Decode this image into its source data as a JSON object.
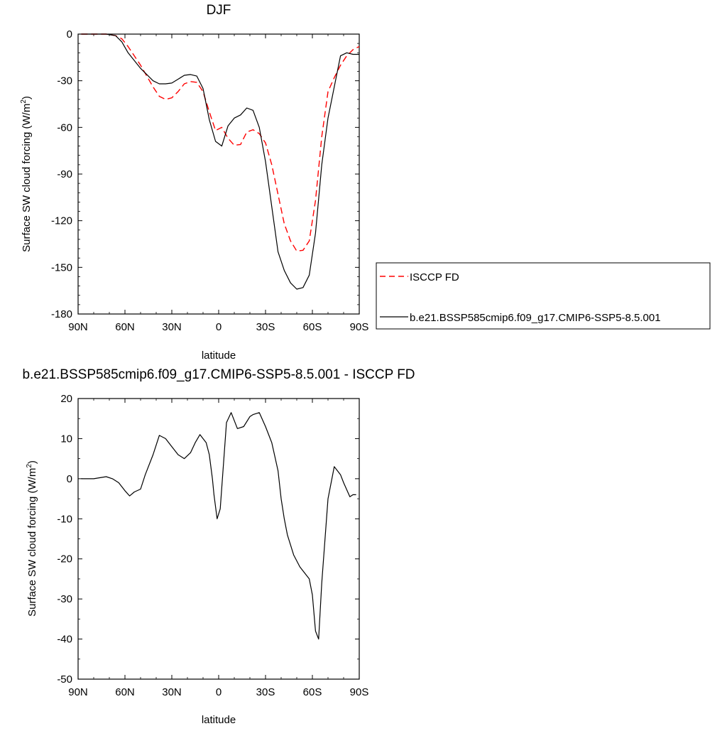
{
  "chart_data": [
    {
      "type": "line",
      "title": "DJF",
      "xlabel": "latitude",
      "ylabel": "Surface SW cloud forcing (W/m²)",
      "ylabel_main": "Surface SW cloud forcing (W/m",
      "ylabel_sup": "2",
      "ylabel_tail": ")",
      "xlim": [
        90,
        -90
      ],
      "ylim": [
        -180,
        0
      ],
      "xticks": [
        {
          "v": 90,
          "label": "90N"
        },
        {
          "v": 60,
          "label": "60N"
        },
        {
          "v": 30,
          "label": "30N"
        },
        {
          "v": 0,
          "label": "0"
        },
        {
          "v": -30,
          "label": "30S"
        },
        {
          "v": -60,
          "label": "60S"
        },
        {
          "v": -90,
          "label": "90S"
        }
      ],
      "yticks": [
        {
          "v": 0,
          "label": "0"
        },
        {
          "v": -30,
          "label": "-30"
        },
        {
          "v": -60,
          "label": "-60"
        },
        {
          "v": -90,
          "label": "-90"
        },
        {
          "v": -120,
          "label": "-120"
        },
        {
          "v": -150,
          "label": "-150"
        },
        {
          "v": -180,
          "label": "-180"
        }
      ],
      "legend": {
        "placement": "right"
      },
      "series": [
        {
          "name": "ISCCP FD",
          "color": "#ff0000",
          "dash": "dashed",
          "x": [
            88,
            80,
            72,
            66,
            62,
            58,
            54,
            50,
            46,
            42,
            38,
            34,
            30,
            26,
            22,
            18,
            14,
            10,
            6,
            2,
            -2,
            -6,
            -10,
            -14,
            -18,
            -22,
            -26,
            -30,
            -34,
            -38,
            -42,
            -46,
            -50,
            -54,
            -58,
            -62,
            -66,
            -70,
            -74,
            -78,
            -82,
            -86,
            -90
          ],
          "y": [
            0,
            0,
            0,
            -1,
            -3,
            -8,
            -14,
            -20,
            -27,
            -34,
            -40,
            -42,
            -41,
            -37,
            -32,
            -30.5,
            -31,
            -37,
            -50,
            -62,
            -60,
            -67,
            -71.5,
            -71,
            -63,
            -61.5,
            -64,
            -70,
            -84,
            -103,
            -122,
            -133,
            -139.5,
            -139,
            -133,
            -107,
            -66,
            -37,
            -28,
            -20,
            -14,
            -10,
            -8
          ]
        },
        {
          "name": "b.e21.BSSP585cmip6.f09_g17.CMIP6-SSP5-8.5.001",
          "color": "#000000",
          "dash": "solid",
          "x": [
            88,
            80,
            72,
            66,
            62,
            58,
            54,
            50,
            46,
            42,
            38,
            34,
            30,
            26,
            22,
            18,
            14,
            10,
            6,
            2,
            -2,
            -6,
            -10,
            -14,
            -18,
            -22,
            -26,
            -30,
            -34,
            -38,
            -42,
            -46,
            -50,
            -54,
            -58,
            -62,
            -66,
            -70,
            -74,
            -78,
            -82,
            -86,
            -90
          ],
          "y": [
            0,
            0,
            0,
            -1,
            -5,
            -12,
            -17,
            -22,
            -26,
            -30,
            -32,
            -32,
            -31.5,
            -29,
            -26.5,
            -26,
            -27,
            -35,
            -55,
            -69,
            -72,
            -59,
            -54,
            -52,
            -47.5,
            -49,
            -60,
            -82,
            -111,
            -140,
            -152,
            -160,
            -164,
            -163,
            -155,
            -128,
            -84,
            -54,
            -34,
            -14,
            -12,
            -13,
            -13
          ]
        }
      ]
    },
    {
      "type": "line",
      "title": "b.e21.BSSP585cmip6.f09_g17.CMIP6-SSP5-8.5.001 - ISCCP FD",
      "xlabel": "latitude",
      "ylabel": "Surface SW cloud forcing (W/m²)",
      "ylabel_main": "Surface SW cloud forcing (W/m",
      "ylabel_sup": "2",
      "ylabel_tail": ")",
      "xlim": [
        90,
        -90
      ],
      "ylim": [
        -50,
        20
      ],
      "xticks": [
        {
          "v": 90,
          "label": "90N"
        },
        {
          "v": 60,
          "label": "60N"
        },
        {
          "v": 30,
          "label": "30N"
        },
        {
          "v": 0,
          "label": "0"
        },
        {
          "v": -30,
          "label": "30S"
        },
        {
          "v": -60,
          "label": "60S"
        },
        {
          "v": -90,
          "label": "90S"
        }
      ],
      "yticks": [
        {
          "v": 20,
          "label": "20"
        },
        {
          "v": 10,
          "label": "10"
        },
        {
          "v": 0,
          "label": "0"
        },
        {
          "v": -10,
          "label": "-10"
        },
        {
          "v": -20,
          "label": "-20"
        },
        {
          "v": -30,
          "label": "-30"
        },
        {
          "v": -40,
          "label": "-40"
        },
        {
          "v": -50,
          "label": "-50"
        }
      ],
      "series": [
        {
          "color": "#000000",
          "dash": "solid",
          "x": [
            88,
            80,
            72,
            68,
            64,
            60,
            57,
            54,
            50,
            47,
            42,
            38,
            34,
            30,
            26,
            22,
            18,
            15,
            12,
            8,
            6,
            4,
            3,
            1,
            -1,
            -5,
            -8,
            -12,
            -16,
            -20,
            -22,
            -26,
            -30,
            -34,
            -38,
            -40,
            -42,
            -44,
            -48,
            -52,
            -56,
            -58,
            -60,
            -62,
            -64,
            -66,
            -70,
            -74,
            -78,
            -80,
            -84,
            -86,
            -88
          ],
          "y": [
            0,
            0,
            0.5,
            0,
            -1,
            -3,
            -4.3,
            -3.3,
            -2.6,
            1,
            6,
            10.8,
            10,
            8,
            6,
            5,
            6.5,
            9,
            11,
            9,
            6,
            0,
            -4,
            -10,
            -7.5,
            14,
            16.5,
            12.5,
            13,
            15.5,
            16,
            16.5,
            13,
            9,
            2,
            -5,
            -10,
            -14,
            -19,
            -22,
            -24,
            -25,
            -29,
            -38,
            -40,
            -26,
            -5,
            3,
            1,
            -1,
            -4.5,
            -4,
            -4
          ]
        }
      ]
    }
  ]
}
